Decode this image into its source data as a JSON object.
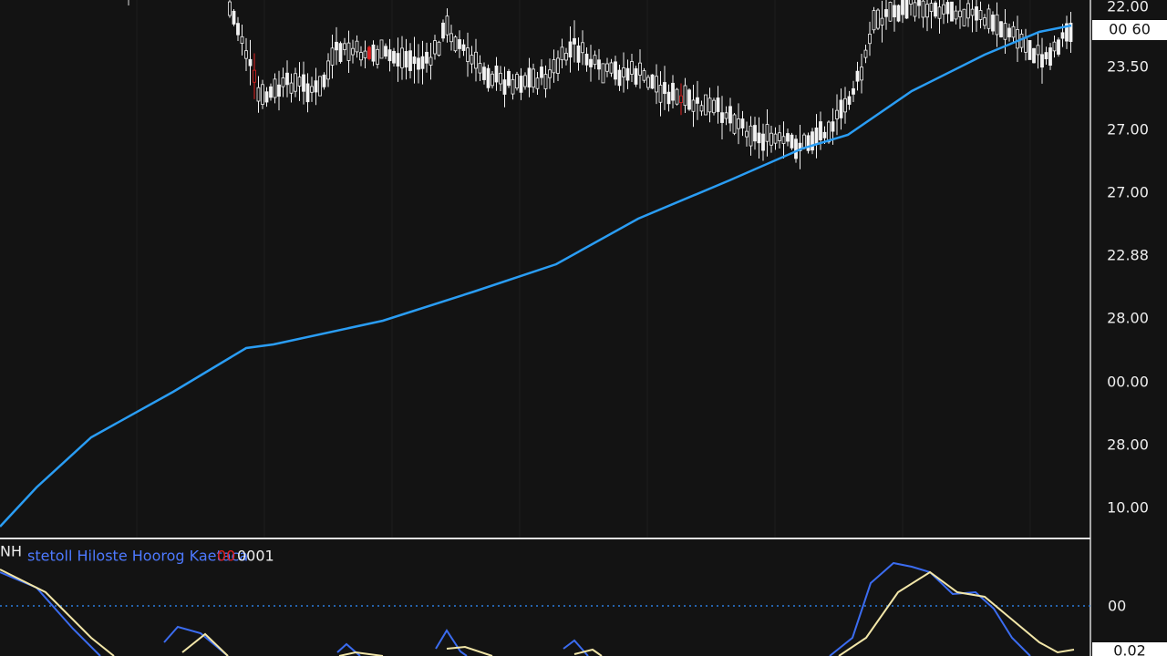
{
  "price_scale": {
    "labels": [
      "22.00",
      "23.50",
      "27.00",
      "27.00",
      "22.88",
      "28.00",
      "00.00",
      "28.00",
      "10.00"
    ],
    "last_price": "00 60"
  },
  "indicator": {
    "short_name": "NH",
    "name": "stetoll Hiloste Hoorog Kaetaca",
    "param_red": "00",
    "param_white": "0001",
    "scale": {
      "zero_label": "00",
      "last_value": "0.02"
    }
  }
}
